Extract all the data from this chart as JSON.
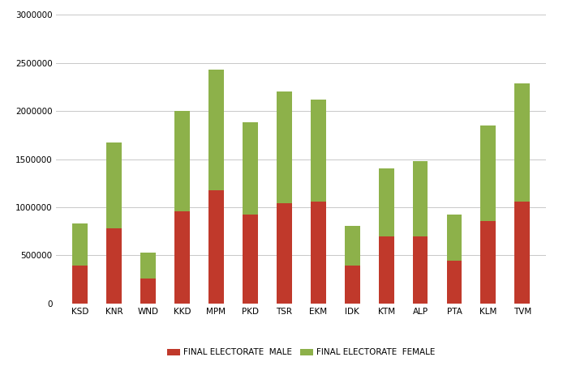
{
  "categories": [
    "KSD",
    "KNR",
    "WND",
    "KKD",
    "MPM",
    "PKD",
    "TSR",
    "EKM",
    "IDK",
    "KTM",
    "ALP",
    "PTA",
    "KLM",
    "TVM"
  ],
  "male": [
    390000,
    780000,
    260000,
    960000,
    1180000,
    920000,
    1040000,
    1060000,
    390000,
    700000,
    700000,
    440000,
    860000,
    1060000
  ],
  "female": [
    440000,
    890000,
    265000,
    1040000,
    1250000,
    960000,
    1160000,
    1060000,
    415000,
    700000,
    775000,
    480000,
    990000,
    1230000
  ],
  "male_color": "#c0392b",
  "female_color": "#8db14a",
  "background_color": "#ffffff",
  "grid_color": "#c8c8c8",
  "ylim": [
    0,
    3000000
  ],
  "yticks": [
    0,
    500000,
    1000000,
    1500000,
    2000000,
    2500000,
    3000000
  ],
  "legend_male": "FINAL ELECTORATE  MALE",
  "legend_female": "FINAL ELECTORATE  FEMALE",
  "figure_width": 6.94,
  "figure_height": 4.57,
  "bar_width": 0.45,
  "tick_fontsize": 7.5,
  "legend_fontsize": 7.5
}
